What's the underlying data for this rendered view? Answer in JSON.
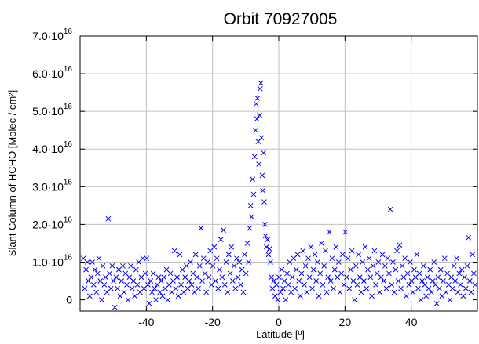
{
  "colors": {
    "series": "#0000ff",
    "grid": "#c0c0c0",
    "axis": "#000000"
  },
  "chart_data": {
    "type": "scatter",
    "title": "Orbit 70927005",
    "xlabel": "Latitude [º]",
    "ylabel": "Slant Column of HCHO [Molec / cm²]",
    "xlim": [
      -60,
      60
    ],
    "ylim": [
      -3000000000000000.0,
      7e+16
    ],
    "grid": true,
    "x_ticks": [
      {
        "value": -40,
        "label": "-40"
      },
      {
        "value": -20,
        "label": "-20"
      },
      {
        "value": 0,
        "label": "0"
      },
      {
        "value": 20,
        "label": "20"
      },
      {
        "value": 40,
        "label": "40"
      }
    ],
    "y_ticks": [
      {
        "value": 0,
        "mantissa": "0",
        "exp": ""
      },
      {
        "value": 1e+16,
        "mantissa": "1.0·10",
        "exp": "16"
      },
      {
        "value": 2e+16,
        "mantissa": "2.0·10",
        "exp": "16"
      },
      {
        "value": 3e+16,
        "mantissa": "3.0·10",
        "exp": "16"
      },
      {
        "value": 4e+16,
        "mantissa": "4.0·10",
        "exp": "16"
      },
      {
        "value": 5e+16,
        "mantissa": "5.0·10",
        "exp": "16"
      },
      {
        "value": 6e+16,
        "mantissa": "6.0·10",
        "exp": "16"
      },
      {
        "value": 7e+16,
        "mantissa": "7.0·10",
        "exp": "16"
      }
    ],
    "marker": "x",
    "points": [
      [
        -59.0,
        1.1e+16
      ],
      [
        -58.6,
        3000000000000000.0
      ],
      [
        -58.2,
        8000000000000000.0
      ],
      [
        -57.8,
        1e+16
      ],
      [
        -57.5,
        5000000000000000.0
      ],
      [
        -57.1,
        1000000000000000.0
      ],
      [
        -56.7,
        6000000000000000.0
      ],
      [
        -56.3,
        1e+16
      ],
      [
        -55.9,
        4000000000000000.0
      ],
      [
        -55.5,
        8000000000000000.0
      ],
      [
        -55.1,
        2000000000000000.0
      ],
      [
        -54.7,
        7000000000000000.0
      ],
      [
        -54.3,
        1.1e+16
      ],
      [
        -53.9,
        5000000000000000.0
      ],
      [
        -53.5,
        0.0
      ],
      [
        -53.1,
        9000000000000000.0
      ],
      [
        -52.7,
        4000000000000000.0
      ],
      [
        -52.3,
        6000000000000000.0
      ],
      [
        -51.9,
        2000000000000000.0
      ],
      [
        -51.5,
        2.15e+16
      ],
      [
        -51.1,
        7000000000000000.0
      ],
      [
        -50.7,
        3000000000000000.0
      ],
      [
        -50.3,
        9000000000000000.0
      ],
      [
        -49.9,
        5000000000000000.0
      ],
      [
        -49.5,
        -2000000000000000.0
      ],
      [
        -49.1,
        6000000000000000.0
      ],
      [
        -48.7,
        3000000000000000.0
      ],
      [
        -48.3,
        8000000000000000.0
      ],
      [
        -47.9,
        1000000000000000.0
      ],
      [
        -47.5,
        5000000000000000.0
      ],
      [
        -47.1,
        9000000000000000.0
      ],
      [
        -46.7,
        2000000000000000.0
      ],
      [
        -46.3,
        7000000000000000.0
      ],
      [
        -45.9,
        4000000000000000.0
      ],
      [
        -45.5,
        0.0
      ],
      [
        -45.1,
        6000000000000000.0
      ],
      [
        -44.7,
        9000000000000000.0
      ],
      [
        -44.3,
        3000000000000000.0
      ],
      [
        -43.9,
        5000000000000000.0
      ],
      [
        -43.5,
        1000000000000000.0
      ],
      [
        -43.1,
        8000000000000000.0
      ],
      [
        -42.7,
        4000000000000000.0
      ],
      [
        -42.3,
        1e+16
      ],
      [
        -41.9,
        2000000000000000.0
      ],
      [
        -41.5,
        6000000000000000.0
      ],
      [
        -41.1,
        1.1e+16
      ],
      [
        -40.7,
        3000000000000000.0
      ],
      [
        -40.3,
        7000000000000000.0
      ],
      [
        -39.9,
        1.1e+16
      ],
      [
        -39.5,
        4000000000000000.0
      ],
      [
        -39.1,
        -1000000000000000.0
      ],
      [
        -38.7,
        5000000000000000.0
      ],
      [
        -38.3,
        2000000000000000.0
      ],
      [
        -37.9,
        7000000000000000.0
      ],
      [
        -37.5,
        3000000000000000.0
      ],
      [
        -37.1,
        0.0
      ],
      [
        -36.7,
        4000000000000000.0
      ],
      [
        -36.3,
        6000000000000000.0
      ],
      [
        -35.9,
        2000000000000000.0
      ],
      [
        -35.5,
        5000000000000000.0
      ],
      [
        -35.1,
        1000000000000000.0
      ],
      [
        -34.7,
        6000000000000000.0
      ],
      [
        -34.3,
        3000000000000000.0
      ],
      [
        -33.9,
        8000000000000000.0
      ],
      [
        -33.5,
        0.0
      ],
      [
        -33.1,
        4000000000000000.0
      ],
      [
        -32.7,
        7000000000000000.0
      ],
      [
        -32.3,
        2000000000000000.0
      ],
      [
        -31.9,
        5000000000000000.0
      ],
      [
        -31.5,
        1.3e+16
      ],
      [
        -31.1,
        3000000000000000.0
      ],
      [
        -30.7,
        6000000000000000.0
      ],
      [
        -30.3,
        1000000000000000.0
      ],
      [
        -29.9,
        1.2e+16
      ],
      [
        -29.5,
        4000000000000000.0
      ],
      [
        -29.1,
        8000000000000000.0
      ],
      [
        -28.7,
        2000000000000000.0
      ],
      [
        -28.3,
        6000000000000000.0
      ],
      [
        -27.9,
        9000000000000000.0
      ],
      [
        -27.5,
        3000000000000000.0
      ],
      [
        -27.1,
        5000000000000000.0
      ],
      [
        -26.7,
        1e+16
      ],
      [
        -26.3,
        4000000000000000.0
      ],
      [
        -25.9,
        7000000000000000.0
      ],
      [
        -25.5,
        2000000000000000.0
      ],
      [
        -25.1,
        1.2e+16
      ],
      [
        -24.7,
        6000000000000000.0
      ],
      [
        -24.3,
        3000000000000000.0
      ],
      [
        -23.9,
        9000000000000000.0
      ],
      [
        -23.5,
        1.9e+16
      ],
      [
        -23.1,
        5000000000000000.0
      ],
      [
        -22.7,
        1.1e+16
      ],
      [
        -22.3,
        7000000000000000.0
      ],
      [
        -21.9,
        2000000000000000.0
      ],
      [
        -21.5,
        1e+16
      ],
      [
        -21.1,
        6000000000000000.0
      ],
      [
        -20.7,
        1.3e+16
      ],
      [
        -20.3,
        4000000000000000.0
      ],
      [
        -19.9,
        9000000000000000.0
      ],
      [
        -19.5,
        1.4e+16
      ],
      [
        -19.1,
        5000000000000000.0
      ],
      [
        -18.7,
        1.1e+16
      ],
      [
        -18.3,
        3000000000000000.0
      ],
      [
        -17.9,
        8000000000000000.0
      ],
      [
        -17.5,
        1.6e+16
      ],
      [
        -17.1,
        6000000000000000.0
      ],
      [
        -16.7,
        1.85e+16
      ],
      [
        -16.3,
        4000000000000000.0
      ],
      [
        -15.9,
        1e+16
      ],
      [
        -15.5,
        2000000000000000.0
      ],
      [
        -15.1,
        1.2e+16
      ],
      [
        -14.7,
        7000000000000000.0
      ],
      [
        -14.3,
        1.4e+16
      ],
      [
        -13.9,
        5000000000000000.0
      ],
      [
        -13.5,
        9000000000000000.0
      ],
      [
        -13.1,
        3000000000000000.0
      ],
      [
        -12.7,
        1.1e+16
      ],
      [
        -12.3,
        6000000000000000.0
      ],
      [
        -11.9,
        1e+16
      ],
      [
        -11.5,
        4000000000000000.0
      ],
      [
        -11.1,
        8000000000000000.0
      ],
      [
        -10.7,
        2000000000000000.0
      ],
      [
        -10.3,
        1.2e+16
      ],
      [
        -9.9,
        7000000000000000.0
      ],
      [
        -9.5,
        1.5e+16
      ],
      [
        -9.1,
        1e+16
      ],
      [
        -8.8,
        1.9e+16
      ],
      [
        -8.5,
        2.5e+16
      ],
      [
        -8.2,
        2.2e+16
      ],
      [
        -7.9,
        3.2e+16
      ],
      [
        -7.6,
        2.8e+16
      ],
      [
        -7.3,
        3.8e+16
      ],
      [
        -7.0,
        4.5e+16
      ],
      [
        -6.8,
        5.2e+16
      ],
      [
        -6.6,
        4.8e+16
      ],
      [
        -6.4,
        5.35e+16
      ],
      [
        -6.2,
        4.2e+16
      ],
      [
        -6.0,
        3.6e+16
      ],
      [
        -5.8,
        4.9e+16
      ],
      [
        -5.6,
        5.6e+16
      ],
      [
        -5.4,
        5.75e+16
      ],
      [
        -5.2,
        4.3e+16
      ],
      [
        -5.0,
        3.3e+16
      ],
      [
        -4.8,
        2.9e+16
      ],
      [
        -4.6,
        3.9e+16
      ],
      [
        -4.4,
        2.6e+16
      ],
      [
        -4.2,
        2e+16
      ],
      [
        -4.0,
        1.7e+16
      ],
      [
        -3.7,
        1.4e+16
      ],
      [
        -3.4,
        1.6e+16
      ],
      [
        -3.1,
        1.2e+16
      ],
      [
        -2.8,
        1.35e+16
      ],
      [
        -2.5,
        1e+16
      ],
      [
        -2.2,
        6000000000000000.0
      ],
      [
        -1.9,
        3000000000000000.0
      ],
      [
        -1.5,
        5000000000000000.0
      ],
      [
        -1.1,
        1000000000000000.0
      ],
      [
        -0.7,
        4000000000000000.0
      ],
      [
        -0.3,
        0.0
      ],
      [
        0.1,
        6000000000000000.0
      ],
      [
        0.5,
        2000000000000000.0
      ],
      [
        0.9,
        8000000000000000.0
      ],
      [
        1.3,
        3000000000000000.0
      ],
      [
        1.7,
        5000000000000000.0
      ],
      [
        2.1,
        0.0
      ],
      [
        2.5,
        7000000000000000.0
      ],
      [
        2.9,
        4000000000000000.0
      ],
      [
        3.3,
        1e+16
      ],
      [
        3.7,
        2000000000000000.0
      ],
      [
        4.1,
        6000000000000000.0
      ],
      [
        4.5,
        1.1e+16
      ],
      [
        4.9,
        3000000000000000.0
      ],
      [
        5.3,
        8000000000000000.0
      ],
      [
        5.7,
        1.2e+16
      ],
      [
        6.1,
        5000000000000000.0
      ],
      [
        6.5,
        1000000000000000.0
      ],
      [
        6.9,
        7000000000000000.0
      ],
      [
        7.3,
        1.3e+16
      ],
      [
        7.7,
        4000000000000000.0
      ],
      [
        8.1,
        9000000000000000.0
      ],
      [
        8.5,
        2000000000000000.0
      ],
      [
        8.9,
        1.1e+16
      ],
      [
        9.3,
        6000000000000000.0
      ],
      [
        9.7,
        1.4e+16
      ],
      [
        10.1,
        3000000000000000.0
      ],
      [
        10.5,
        8000000000000000.0
      ],
      [
        10.9,
        1.2e+16
      ],
      [
        11.3,
        5000000000000000.0
      ],
      [
        11.7,
        1e+16
      ],
      [
        12.1,
        1000000000000000.0
      ],
      [
        12.5,
        7000000000000000.0
      ],
      [
        12.9,
        1.5e+16
      ],
      [
        13.3,
        4000000000000000.0
      ],
      [
        13.7,
        9000000000000000.0
      ],
      [
        14.1,
        1.3e+16
      ],
      [
        14.5,
        2000000000000000.0
      ],
      [
        14.9,
        6000000000000000.0
      ],
      [
        15.3,
        1.8e+16
      ],
      [
        15.7,
        5000000000000000.0
      ],
      [
        16.1,
        1.1e+16
      ],
      [
        16.5,
        3000000000000000.0
      ],
      [
        16.9,
        8000000000000000.0
      ],
      [
        17.3,
        1.4e+16
      ],
      [
        17.7,
        6000000000000000.0
      ],
      [
        18.1,
        1e+16
      ],
      [
        18.5,
        2000000000000000.0
      ],
      [
        18.9,
        7000000000000000.0
      ],
      [
        19.3,
        1.2e+16
      ],
      [
        19.7,
        4000000000000000.0
      ],
      [
        20.1,
        1.8e+16
      ],
      [
        20.5,
        6000000000000000.0
      ],
      [
        20.9,
        1.1e+16
      ],
      [
        21.3,
        3000000000000000.0
      ],
      [
        21.7,
        8000000000000000.0
      ],
      [
        22.1,
        1.3e+16
      ],
      [
        22.5,
        5000000000000000.0
      ],
      [
        22.9,
        0.0
      ],
      [
        23.3,
        9000000000000000.0
      ],
      [
        23.7,
        4000000000000000.0
      ],
      [
        24.1,
        1.2e+16
      ],
      [
        24.5,
        6000000000000000.0
      ],
      [
        24.9,
        2000000000000000.0
      ],
      [
        25.3,
        1e+16
      ],
      [
        25.7,
        5000000000000000.0
      ],
      [
        26.1,
        1.4e+16
      ],
      [
        26.5,
        3000000000000000.0
      ],
      [
        26.9,
        8000000000000000.0
      ],
      [
        27.3,
        1.1e+16
      ],
      [
        27.7,
        6000000000000000.0
      ],
      [
        28.1,
        1000000000000000.0
      ],
      [
        28.5,
        9000000000000000.0
      ],
      [
        28.9,
        1.3e+16
      ],
      [
        29.3,
        4000000000000000.0
      ],
      [
        29.7,
        7000000000000000.0
      ],
      [
        30.1,
        1e+16
      ],
      [
        30.5,
        2000000000000000.0
      ],
      [
        30.9,
        6000000000000000.0
      ],
      [
        31.3,
        1.2e+16
      ],
      [
        31.7,
        5000000000000000.0
      ],
      [
        32.1,
        9000000000000000.0
      ],
      [
        32.5,
        3000000000000000.0
      ],
      [
        32.9,
        1.1e+16
      ],
      [
        33.3,
        7000000000000000.0
      ],
      [
        33.7,
        2.4e+16
      ],
      [
        34.1,
        4000000000000000.0
      ],
      [
        34.5,
        1e+16
      ],
      [
        34.9,
        2000000000000000.0
      ],
      [
        35.3,
        8000000000000000.0
      ],
      [
        35.7,
        1.3e+16
      ],
      [
        36.1,
        5000000000000000.0
      ],
      [
        36.5,
        1.45e+16
      ],
      [
        36.9,
        3000000000000000.0
      ],
      [
        37.3,
        9000000000000000.0
      ],
      [
        37.7,
        6000000000000000.0
      ],
      [
        38.1,
        1.1e+16
      ],
      [
        38.5,
        1000000000000000.0
      ],
      [
        38.9,
        7000000000000000.0
      ],
      [
        39.3,
        4000000000000000.0
      ],
      [
        39.7,
        1e+16
      ],
      [
        40.1,
        5000000000000000.0
      ],
      [
        40.5,
        2000000000000000.0
      ],
      [
        40.9,
        8000000000000000.0
      ],
      [
        41.3,
        6000000000000000.0
      ],
      [
        41.7,
        1.2e+16
      ],
      [
        42.1,
        3000000000000000.0
      ],
      [
        42.5,
        7000000000000000.0
      ],
      [
        42.9,
        0.0
      ],
      [
        43.3,
        5000000000000000.0
      ],
      [
        43.7,
        9000000000000000.0
      ],
      [
        44.1,
        4000000000000000.0
      ],
      [
        44.5,
        1000000000000000.0
      ],
      [
        44.9,
        6000000000000000.0
      ],
      [
        45.3,
        3000000000000000.0
      ],
      [
        45.7,
        8000000000000000.0
      ],
      [
        46.1,
        2000000000000000.0
      ],
      [
        46.5,
        5000000000000000.0
      ],
      [
        46.9,
        1e+16
      ],
      [
        47.3,
        4000000000000000.0
      ],
      [
        47.7,
        -1000000000000000.0
      ],
      [
        48.1,
        6000000000000000.0
      ],
      [
        48.5,
        3000000000000000.0
      ],
      [
        48.9,
        8000000000000000.0
      ],
      [
        49.3,
        1000000000000000.0
      ],
      [
        49.7,
        5000000000000000.0
      ],
      [
        50.1,
        1.1e+16
      ],
      [
        50.5,
        2000000000000000.0
      ],
      [
        50.9,
        7000000000000000.0
      ],
      [
        51.3,
        4000000000000000.0
      ],
      [
        51.7,
        0.0
      ],
      [
        52.1,
        6000000000000000.0
      ],
      [
        52.5,
        3000000000000000.0
      ],
      [
        52.9,
        9000000000000000.0
      ],
      [
        53.3,
        5000000000000000.0
      ],
      [
        53.7,
        1.1e+16
      ],
      [
        54.1,
        2000000000000000.0
      ],
      [
        54.5,
        7000000000000000.0
      ],
      [
        54.9,
        4000000000000000.0
      ],
      [
        55.3,
        8000000000000000.0
      ],
      [
        55.7,
        1000000000000000.0
      ],
      [
        56.1,
        6000000000000000.0
      ],
      [
        56.5,
        3000000000000000.0
      ],
      [
        56.9,
        9000000000000000.0
      ],
      [
        57.3,
        1.65e+16
      ],
      [
        57.7,
        5000000000000000.0
      ],
      [
        58.1,
        2000000000000000.0
      ],
      [
        58.5,
        1.2e+16
      ],
      [
        58.9,
        7000000000000000.0
      ],
      [
        59.3,
        4000000000000000.0
      ]
    ]
  }
}
